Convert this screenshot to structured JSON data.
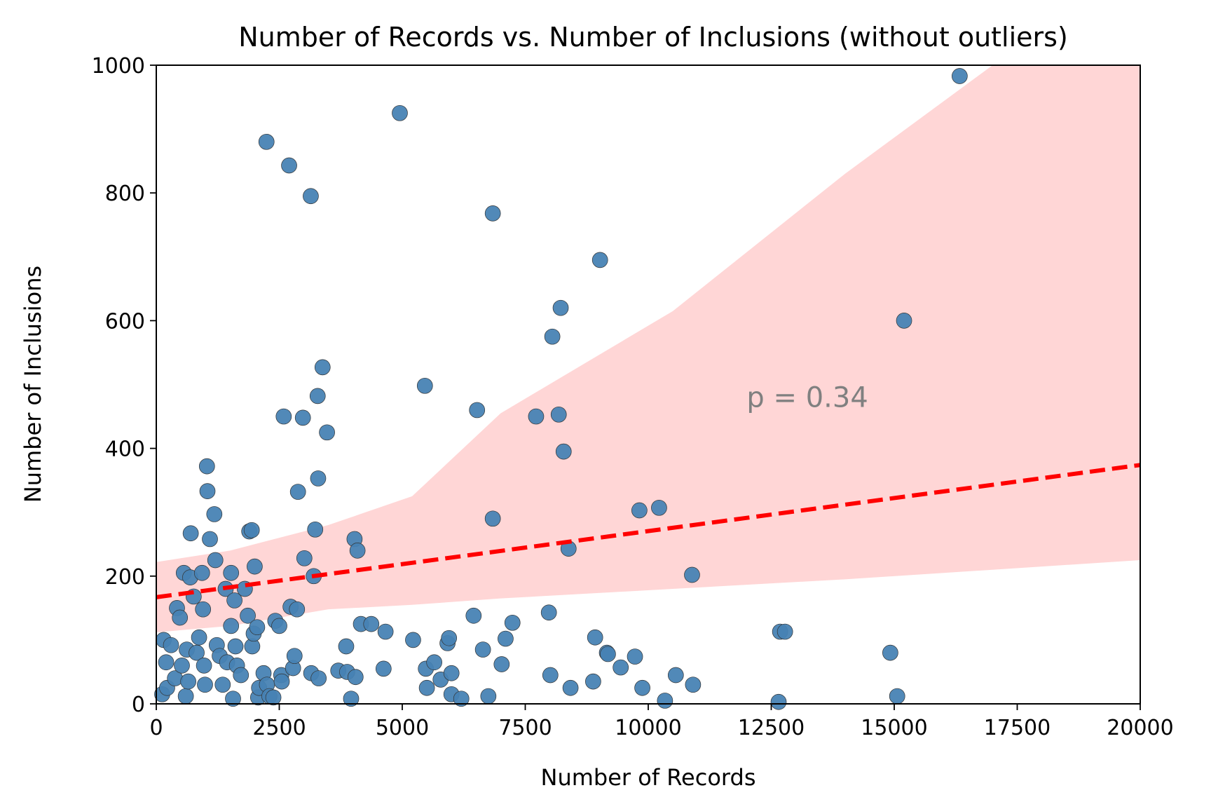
{
  "chart_data": {
    "type": "scatter",
    "title": "Number of Records vs. Number of Inclusions (without outliers)",
    "xlabel": "Number of Records",
    "ylabel": "Number of Inclusions",
    "xlim": [
      0,
      20000
    ],
    "ylim": [
      0,
      1000
    ],
    "xticks": [
      0,
      2500,
      5000,
      7500,
      10000,
      12500,
      15000,
      17500,
      20000
    ],
    "yticks": [
      0,
      200,
      400,
      600,
      800,
      1000
    ],
    "grid": false,
    "annotation": "p = 0.34",
    "annotation_at": [
      12000,
      465
    ],
    "regression": {
      "start": [
        0,
        167
      ],
      "end": [
        20000,
        374
      ]
    },
    "confidence_band": {
      "upper": [
        [
          0,
          222
        ],
        [
          1500,
          240
        ],
        [
          3500,
          280
        ],
        [
          5200,
          325
        ],
        [
          7000,
          455
        ],
        [
          10500,
          615
        ],
        [
          14000,
          830
        ],
        [
          17000,
          1000
        ],
        [
          20000,
          1000
        ]
      ],
      "lower": [
        [
          0,
          112
        ],
        [
          1500,
          122
        ],
        [
          3500,
          148
        ],
        [
          5200,
          155
        ],
        [
          7000,
          165
        ],
        [
          10500,
          180
        ],
        [
          14000,
          195
        ],
        [
          17000,
          210
        ],
        [
          20000,
          225
        ]
      ]
    },
    "series": [
      {
        "color": "#4682b4",
        "points": [
          [
            120,
            15
          ],
          [
            150,
            100
          ],
          [
            200,
            65
          ],
          [
            220,
            25
          ],
          [
            300,
            92
          ],
          [
            380,
            40
          ],
          [
            420,
            150
          ],
          [
            480,
            135
          ],
          [
            520,
            60
          ],
          [
            560,
            205
          ],
          [
            600,
            12
          ],
          [
            620,
            85
          ],
          [
            650,
            35
          ],
          [
            690,
            198
          ],
          [
            700,
            267
          ],
          [
            760,
            168
          ],
          [
            820,
            80
          ],
          [
            870,
            104
          ],
          [
            930,
            205
          ],
          [
            950,
            148
          ],
          [
            970,
            60
          ],
          [
            990,
            30
          ],
          [
            1030,
            372
          ],
          [
            1040,
            333
          ],
          [
            1090,
            258
          ],
          [
            1180,
            297
          ],
          [
            1200,
            225
          ],
          [
            1230,
            92
          ],
          [
            1290,
            75
          ],
          [
            1350,
            30
          ],
          [
            1410,
            180
          ],
          [
            1440,
            65
          ],
          [
            1520,
            205
          ],
          [
            1520,
            122
          ],
          [
            1560,
            8
          ],
          [
            1590,
            162
          ],
          [
            1610,
            90
          ],
          [
            1640,
            60
          ],
          [
            1720,
            45
          ],
          [
            1800,
            180
          ],
          [
            1860,
            138
          ],
          [
            1890,
            270
          ],
          [
            1940,
            272
          ],
          [
            1950,
            90
          ],
          [
            1980,
            110
          ],
          [
            2000,
            215
          ],
          [
            2050,
            120
          ],
          [
            2070,
            10
          ],
          [
            2090,
            25
          ],
          [
            2180,
            48
          ],
          [
            2240,
            880
          ],
          [
            2250,
            30
          ],
          [
            2300,
            12
          ],
          [
            2380,
            10
          ],
          [
            2420,
            130
          ],
          [
            2500,
            122
          ],
          [
            2540,
            45
          ],
          [
            2550,
            35
          ],
          [
            2590,
            450
          ],
          [
            2700,
            843
          ],
          [
            2730,
            152
          ],
          [
            2780,
            56
          ],
          [
            2810,
            75
          ],
          [
            2860,
            148
          ],
          [
            2880,
            332
          ],
          [
            2980,
            448
          ],
          [
            3010,
            228
          ],
          [
            3140,
            795
          ],
          [
            3150,
            48
          ],
          [
            3200,
            200
          ],
          [
            3230,
            273
          ],
          [
            3280,
            482
          ],
          [
            3290,
            353
          ],
          [
            3300,
            40
          ],
          [
            3380,
            527
          ],
          [
            3470,
            425
          ],
          [
            3700,
            52
          ],
          [
            3860,
            90
          ],
          [
            3880,
            50
          ],
          [
            3960,
            8
          ],
          [
            4030,
            258
          ],
          [
            4050,
            42
          ],
          [
            4090,
            240
          ],
          [
            4160,
            125
          ],
          [
            4370,
            125
          ],
          [
            4620,
            55
          ],
          [
            4660,
            113
          ],
          [
            4950,
            925
          ],
          [
            5220,
            100
          ],
          [
            5460,
            498
          ],
          [
            5480,
            55
          ],
          [
            5500,
            25
          ],
          [
            5650,
            65
          ],
          [
            5780,
            38
          ],
          [
            5920,
            95
          ],
          [
            5950,
            103
          ],
          [
            6000,
            48
          ],
          [
            6000,
            15
          ],
          [
            6200,
            8
          ],
          [
            6450,
            138
          ],
          [
            6520,
            460
          ],
          [
            6640,
            85
          ],
          [
            6750,
            12
          ],
          [
            6840,
            290
          ],
          [
            6840,
            768
          ],
          [
            7020,
            62
          ],
          [
            7100,
            102
          ],
          [
            7240,
            127
          ],
          [
            7720,
            450
          ],
          [
            7980,
            143
          ],
          [
            8010,
            45
          ],
          [
            8050,
            575
          ],
          [
            8180,
            453
          ],
          [
            8220,
            620
          ],
          [
            8280,
            395
          ],
          [
            8380,
            243
          ],
          [
            8420,
            25
          ],
          [
            8880,
            35
          ],
          [
            8920,
            104
          ],
          [
            9020,
            695
          ],
          [
            9160,
            80
          ],
          [
            9180,
            78
          ],
          [
            9440,
            57
          ],
          [
            9730,
            74
          ],
          [
            9820,
            303
          ],
          [
            9880,
            25
          ],
          [
            10220,
            307
          ],
          [
            10340,
            5
          ],
          [
            10560,
            45
          ],
          [
            10890,
            202
          ],
          [
            10910,
            30
          ],
          [
            12650,
            3
          ],
          [
            12680,
            113
          ],
          [
            12780,
            113
          ],
          [
            14920,
            80
          ],
          [
            15060,
            12
          ],
          [
            15200,
            600
          ],
          [
            16330,
            983
          ]
        ]
      }
    ]
  }
}
